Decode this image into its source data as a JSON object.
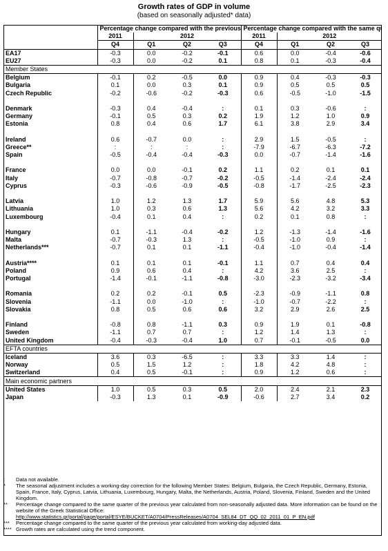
{
  "title": "Growth rates of GDP in volume",
  "subtitle": "(based on seasonally adjusted* data)",
  "headers": {
    "left_group": "Percentage change compared with the previous quarter",
    "right_group": "Percentage change compared with the same quarter of the previous year",
    "year_2011": "2011",
    "year_2012": "2012",
    "quarters": [
      "Q4",
      "Q1",
      "Q2",
      "Q3",
      "Q4",
      "Q1",
      "Q2",
      "Q3"
    ]
  },
  "rows": [
    {
      "type": "data",
      "label": "EA17",
      "values": [
        "-0.3",
        "0.0",
        "-0.2",
        "-0.1",
        "0.6",
        "0.0",
        "-0.4",
        "-0.6"
      ]
    },
    {
      "type": "data",
      "label": "EU27",
      "values": [
        "-0.3",
        "0.0",
        "-0.2",
        "0.1",
        "0.8",
        "0.1",
        "-0.3",
        "-0.4"
      ]
    },
    {
      "type": "section",
      "label": "Member States"
    },
    {
      "type": "data",
      "label": "Belgium",
      "values": [
        "-0.1",
        "0.2",
        "-0.5",
        "0.0",
        "0.9",
        "0.4",
        "-0.3",
        "-0.3"
      ]
    },
    {
      "type": "data",
      "label": "Bulgaria",
      "values": [
        "0.1",
        "0.0",
        "0.3",
        "0.1",
        "0.9",
        "0.5",
        "0.5",
        "0.5"
      ]
    },
    {
      "type": "data",
      "label": "Czech Republic",
      "values": [
        "-0.2",
        "-0.6",
        "-0.2",
        "-0.3",
        "0.6",
        "-0.5",
        "-1.0",
        "-1.5"
      ]
    },
    {
      "type": "blank"
    },
    {
      "type": "data",
      "label": "Denmark",
      "values": [
        "-0.3",
        "0.4",
        "-0.4",
        ":",
        "0.1",
        "0.3",
        "-0.6",
        ":"
      ]
    },
    {
      "type": "data",
      "label": "Germany",
      "values": [
        "-0.1",
        "0.5",
        "0.3",
        "0.2",
        "1.9",
        "1.2",
        "1.0",
        "0.9"
      ]
    },
    {
      "type": "data",
      "label": "Estonia",
      "values": [
        "0.8",
        "0.4",
        "0.6",
        "1.7",
        "6.1",
        "3.8",
        "2.9",
        "3.4"
      ]
    },
    {
      "type": "blank"
    },
    {
      "type": "data",
      "label": "Ireland",
      "values": [
        "0.6",
        "-0.7",
        "0.0",
        ":",
        "2.9",
        "1.5",
        "-0.5",
        ":"
      ]
    },
    {
      "type": "data",
      "label": "Greece**",
      "values": [
        ":",
        ":",
        ":",
        ":",
        "-7.9",
        "-6.7",
        "-6.3",
        "-7.2"
      ]
    },
    {
      "type": "data",
      "label": "Spain",
      "values": [
        "-0.5",
        "-0.4",
        "-0.4",
        "-0.3",
        "0.0",
        "-0.7",
        "-1.4",
        "-1.6"
      ]
    },
    {
      "type": "blank"
    },
    {
      "type": "data",
      "label": "France",
      "values": [
        "0.0",
        "0.0",
        "-0.1",
        "0.2",
        "1.1",
        "0.2",
        "0.1",
        "0.1"
      ]
    },
    {
      "type": "data",
      "label": "Italy",
      "values": [
        "-0.7",
        "-0.8",
        "-0.7",
        "-0.2",
        "-0.5",
        "-1.4",
        "-2.4",
        "-2.4"
      ]
    },
    {
      "type": "data",
      "label": "Cyprus",
      "values": [
        "-0.3",
        "-0.6",
        "-0.9",
        "-0.5",
        "-0.8",
        "-1.7",
        "-2.5",
        "-2.3"
      ]
    },
    {
      "type": "blank"
    },
    {
      "type": "data",
      "label": "Latvia",
      "values": [
        "1.0",
        "1.2",
        "1.3",
        "1.7",
        "5.9",
        "5.6",
        "4.8",
        "5.3"
      ]
    },
    {
      "type": "data",
      "label": "Lithuania",
      "values": [
        "1.0",
        "0.3",
        "0.6",
        "1.3",
        "5.6",
        "4.2",
        "3.2",
        "3.3"
      ]
    },
    {
      "type": "data",
      "label": "Luxembourg",
      "values": [
        "-0.4",
        "0.1",
        "0.4",
        ":",
        "0.2",
        "0.1",
        "0.8",
        ":"
      ]
    },
    {
      "type": "blank"
    },
    {
      "type": "data",
      "label": "Hungary",
      "values": [
        "0.1",
        "-1.1",
        "-0.4",
        "-0.2",
        "1.2",
        "-1.3",
        "-1.4",
        "-1.6"
      ]
    },
    {
      "type": "data",
      "label": "Malta",
      "values": [
        "-0.7",
        "-0.3",
        "1.3",
        ":",
        "-0.5",
        "-1.0",
        "0.9",
        ":"
      ]
    },
    {
      "type": "data",
      "label": "Netherlands***",
      "values": [
        "-0.7",
        "0.1",
        "0.1",
        "-1.1",
        "-0.4",
        "-1.0",
        "-0.4",
        "-1.4"
      ]
    },
    {
      "type": "blank"
    },
    {
      "type": "data",
      "label": "Austria****",
      "values": [
        "0.1",
        "0.1",
        "0.1",
        "-0.1",
        "1.1",
        "0.7",
        "0.4",
        "0.4"
      ]
    },
    {
      "type": "data",
      "label": "Poland",
      "values": [
        "0.9",
        "0.6",
        "0.4",
        ":",
        "4.2",
        "3.6",
        "2.5",
        ":"
      ]
    },
    {
      "type": "data",
      "label": "Portugal",
      "values": [
        "-1.4",
        "-0.1",
        "-1.1",
        "-0.8",
        "-3.0",
        "-2.3",
        "-3.2",
        "-3.4"
      ]
    },
    {
      "type": "blank"
    },
    {
      "type": "data",
      "label": "Romania",
      "values": [
        "0.2",
        "0.2",
        "-0.1",
        "0.5",
        "-2.3",
        "-0.9",
        "-1.1",
        "0.8"
      ]
    },
    {
      "type": "data",
      "label": "Slovenia",
      "values": [
        "-1.1",
        "0.0",
        "-1.0",
        ":",
        "-1.0",
        "-0.7",
        "-2.2",
        ":"
      ]
    },
    {
      "type": "data",
      "label": "Slovakia",
      "values": [
        "0.8",
        "0.5",
        "0.6",
        "0.6",
        "3.2",
        "2.9",
        "2.6",
        "2.5"
      ]
    },
    {
      "type": "blank"
    },
    {
      "type": "data",
      "label": "Finland",
      "values": [
        "-0.8",
        "0.8",
        "-1.1",
        "0.3",
        "0.9",
        "1.9",
        "0.1",
        "-0.8"
      ]
    },
    {
      "type": "data",
      "label": "Sweden",
      "values": [
        "-1.1",
        "0.7",
        "0.7",
        ":",
        "1.2",
        "1.4",
        "1.3",
        ":"
      ]
    },
    {
      "type": "data",
      "label": "United Kingdom",
      "values": [
        "-0.4",
        "-0.3",
        "-0.4",
        "1.0",
        "0.7",
        "-0.1",
        "-0.5",
        "0.0"
      ]
    },
    {
      "type": "section",
      "label": "EFTA countries"
    },
    {
      "type": "data",
      "label": "Iceland",
      "values": [
        "3.6",
        "0.3",
        "-6.5",
        ":",
        "3.3",
        "3.3",
        "1.4",
        ":"
      ]
    },
    {
      "type": "data",
      "label": "Norway",
      "values": [
        "0.5",
        "1.5",
        "1.2",
        ":",
        "1.8",
        "4.2",
        "4.8",
        ":"
      ]
    },
    {
      "type": "data",
      "label": "Switzerland",
      "values": [
        "0.4",
        "0.5",
        "-0.1",
        ":",
        "0.9",
        "1.2",
        "0.6",
        ":"
      ]
    },
    {
      "type": "section",
      "label": "Main economic partners"
    },
    {
      "type": "data",
      "label": "United States",
      "values": [
        "1.0",
        "0.5",
        "0.3",
        "0.5",
        "2.0",
        "2.4",
        "2.1",
        "2.3"
      ]
    },
    {
      "type": "data",
      "label": "Japan",
      "values": [
        "-0.3",
        "1.3",
        "0.1",
        "-0.9",
        "-0.6",
        "2.7",
        "3.4",
        "0.2"
      ]
    }
  ],
  "notes": [
    {
      "mark": ":",
      "text": "Data not available."
    },
    {
      "mark": "*",
      "text": "The seasonal adjustment includes a working-day correction for the following Member States: Belgium, Bulgaria, the Czech Republic, Germany, Estonia, Spain, France, Italy, Cyprus, Latvia, Lithuania, Luxembourg, Hungary, Malta, the Netherlands, Austria, Poland, Slovenia, Finland, Sweden and the United Kingdom."
    },
    {
      "mark": "**",
      "text": "Percentage change compared to the same quarter of the previous year calculated from non-seasonally adjusted data. More information can be found on the website of the Greek Statistical Office:",
      "link": "http://www.statistics.gr/portal/page/portal/ESYE/BUCKET/A0704/PressReleases/A0704_SEL84_DT_QQ_02_2011_01_P_EN.pdf"
    },
    {
      "mark": "***",
      "text": "Percentage change compared to the same quarter of the previous year calculated from working-day adjusted data."
    },
    {
      "mark": "****",
      "text": "Growth rates are calculated using the trend component."
    }
  ]
}
